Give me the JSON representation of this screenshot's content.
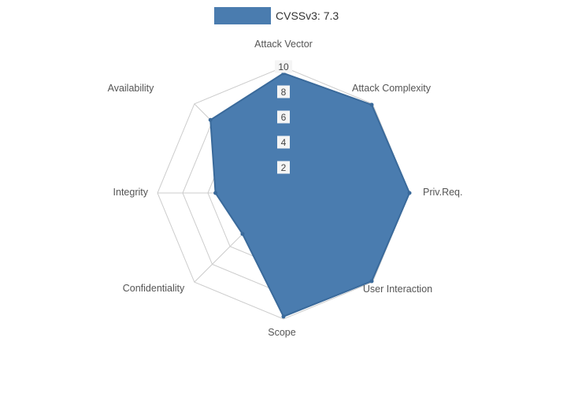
{
  "legend": {
    "label": "CVSSv3: 7.3"
  },
  "chart_data": {
    "type": "radar",
    "title": "CVSSv3: 7.3",
    "categories": [
      "Attack Vector",
      "Attack Complexity",
      "Priv.Req.",
      "User Interaction",
      "Scope",
      "Confidentiality",
      "Integrity",
      "Availability"
    ],
    "series": [
      {
        "name": "CVSSv3: 7.3",
        "values": [
          9.5,
          9.9,
          10,
          9.9,
          9.8,
          4.6,
          5.4,
          8.2
        ],
        "fill_color": "#4a7caf",
        "line_color": "#3a6a9b"
      }
    ],
    "rings": [
      2,
      4,
      6,
      8,
      10
    ],
    "axis_max": 10,
    "grid": true,
    "legend_position": "top",
    "grid_color": "#cccccc",
    "tick_label_color": "#444444",
    "tick_label_bg": "#f5f5f5",
    "axis_label_color": "#555555"
  }
}
